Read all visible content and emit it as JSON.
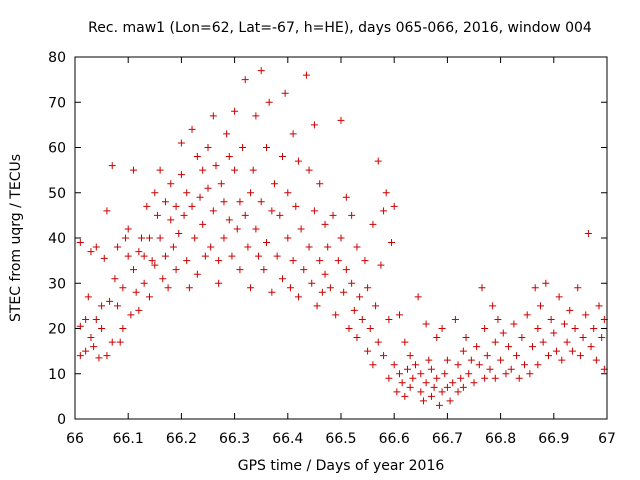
{
  "chart_data": {
    "type": "scatter",
    "title": "Rec. maw1 (Lon=62, Lat=-67, h=HE), days 065-066, 2016, window 004",
    "xlabel": "GPS time / Days of year 2016",
    "ylabel": "STEC from uqrg / TECUs",
    "xlim": [
      66,
      67
    ],
    "ylim": [
      0,
      80
    ],
    "xticks": [
      "66",
      "66.1",
      "66.2",
      "66.3",
      "66.4",
      "66.5",
      "66.6",
      "66.7",
      "66.8",
      "66.9",
      "67"
    ],
    "yticks": [
      "0",
      "10",
      "20",
      "30",
      "40",
      "50",
      "60",
      "70",
      "80"
    ],
    "grid": false,
    "marker": "plus",
    "color": "#cc0000",
    "series": [
      {
        "points": [
          [
            66.01,
            20.5
          ],
          [
            66.01,
            14.0
          ],
          [
            66.01,
            39.0
          ],
          [
            66.02,
            22.0
          ],
          [
            66.02,
            15.0
          ],
          [
            66.025,
            27.0
          ],
          [
            66.03,
            37.0
          ],
          [
            66.03,
            18.0
          ],
          [
            66.035,
            16.0
          ],
          [
            66.04,
            38.0
          ],
          [
            66.04,
            22.0
          ],
          [
            66.045,
            13.5
          ],
          [
            66.05,
            25.0
          ],
          [
            66.05,
            20.0
          ],
          [
            66.055,
            35.5
          ],
          [
            66.06,
            46.0
          ],
          [
            66.06,
            14.0
          ],
          [
            66.065,
            26.0
          ],
          [
            66.07,
            17.0
          ],
          [
            66.07,
            56.0
          ],
          [
            66.075,
            31.0
          ],
          [
            66.08,
            38.0
          ],
          [
            66.08,
            25.0
          ],
          [
            66.085,
            17.0
          ],
          [
            66.09,
            29.0
          ],
          [
            66.09,
            20.0
          ],
          [
            66.095,
            40.0
          ],
          [
            66.1,
            42.0
          ],
          [
            66.1,
            36.0
          ],
          [
            66.105,
            23.0
          ],
          [
            66.11,
            55.0
          ],
          [
            66.11,
            33.0
          ],
          [
            66.115,
            28.0
          ],
          [
            66.12,
            37.0
          ],
          [
            66.12,
            24.0
          ],
          [
            66.125,
            40.0
          ],
          [
            66.13,
            36.0
          ],
          [
            66.13,
            30.0
          ],
          [
            66.135,
            47.0
          ],
          [
            66.14,
            40.0
          ],
          [
            66.14,
            27.0
          ],
          [
            66.145,
            35.0
          ],
          [
            66.15,
            50.0
          ],
          [
            66.15,
            34.0
          ],
          [
            66.155,
            45.0
          ],
          [
            66.16,
            55.0
          ],
          [
            66.16,
            40.0
          ],
          [
            66.165,
            31.0
          ],
          [
            66.17,
            48.0
          ],
          [
            66.17,
            36.0
          ],
          [
            66.175,
            29.0
          ],
          [
            66.18,
            52.0
          ],
          [
            66.18,
            44.0
          ],
          [
            66.185,
            38.0
          ],
          [
            66.19,
            47.0
          ],
          [
            66.19,
            33.0
          ],
          [
            66.195,
            41.0
          ],
          [
            66.2,
            61.0
          ],
          [
            66.2,
            54.0
          ],
          [
            66.205,
            45.0
          ],
          [
            66.21,
            50.0
          ],
          [
            66.21,
            35.0
          ],
          [
            66.215,
            29.0
          ],
          [
            66.22,
            64.0
          ],
          [
            66.22,
            47.0
          ],
          [
            66.225,
            40.0
          ],
          [
            66.23,
            58.0
          ],
          [
            66.23,
            32.0
          ],
          [
            66.235,
            49.0
          ],
          [
            66.24,
            55.0
          ],
          [
            66.24,
            43.0
          ],
          [
            66.245,
            36.0
          ],
          [
            66.25,
            60.0
          ],
          [
            66.25,
            51.0
          ],
          [
            66.255,
            38.0
          ],
          [
            66.26,
            67.0
          ],
          [
            66.26,
            46.0
          ],
          [
            66.265,
            56.0
          ],
          [
            66.27,
            35.0
          ],
          [
            66.27,
            30.0
          ],
          [
            66.275,
            52.0
          ],
          [
            66.28,
            48.0
          ],
          [
            66.28,
            40.0
          ],
          [
            66.285,
            63.0
          ],
          [
            66.29,
            58.0
          ],
          [
            66.29,
            44.0
          ],
          [
            66.295,
            36.0
          ],
          [
            66.3,
            68.0
          ],
          [
            66.3,
            55.0
          ],
          [
            66.305,
            42.0
          ],
          [
            66.31,
            48.0
          ],
          [
            66.31,
            33.0
          ],
          [
            66.315,
            60.0
          ],
          [
            66.32,
            75.0
          ],
          [
            66.32,
            45.0
          ],
          [
            66.325,
            38.0
          ],
          [
            66.33,
            50.0
          ],
          [
            66.33,
            29.0
          ],
          [
            66.335,
            55.0
          ],
          [
            66.34,
            67.0
          ],
          [
            66.34,
            42.0
          ],
          [
            66.345,
            36.0
          ],
          [
            66.35,
            77.0
          ],
          [
            66.35,
            48.0
          ],
          [
            66.355,
            33.0
          ],
          [
            66.36,
            60.0
          ],
          [
            66.36,
            39.0
          ],
          [
            66.365,
            70.0
          ],
          [
            66.37,
            46.0
          ],
          [
            66.37,
            28.0
          ],
          [
            66.375,
            52.0
          ],
          [
            66.38,
            36.0
          ],
          [
            66.385,
            45.0
          ],
          [
            66.39,
            58.0
          ],
          [
            66.39,
            31.0
          ],
          [
            66.395,
            72.0
          ],
          [
            66.4,
            50.0
          ],
          [
            66.4,
            40.0
          ],
          [
            66.405,
            29.0
          ],
          [
            66.41,
            63.0
          ],
          [
            66.41,
            35.0
          ],
          [
            66.415,
            47.0
          ],
          [
            66.42,
            57.0
          ],
          [
            66.42,
            27.0
          ],
          [
            66.425,
            42.0
          ],
          [
            66.43,
            33.0
          ],
          [
            66.435,
            76.0
          ],
          [
            66.44,
            55.0
          ],
          [
            66.44,
            38.0
          ],
          [
            66.445,
            30.0
          ],
          [
            66.45,
            65.0
          ],
          [
            66.45,
            46.0
          ],
          [
            66.455,
            25.0
          ],
          [
            66.46,
            52.0
          ],
          [
            66.46,
            35.0
          ],
          [
            66.465,
            28.0
          ],
          [
            66.47,
            43.0
          ],
          [
            66.47,
            32.0
          ],
          [
            66.475,
            38.0
          ],
          [
            66.48,
            29.0
          ],
          [
            66.485,
            45.0
          ],
          [
            66.49,
            23.0
          ],
          [
            66.495,
            35.0
          ],
          [
            66.5,
            66.0
          ],
          [
            66.5,
            40.0
          ],
          [
            66.505,
            28.0
          ],
          [
            66.51,
            49.0
          ],
          [
            66.51,
            33.0
          ],
          [
            66.515,
            20.0
          ],
          [
            66.52,
            45.0
          ],
          [
            66.52,
            30.0
          ],
          [
            66.525,
            24.0
          ],
          [
            66.53,
            38.0
          ],
          [
            66.53,
            18.0
          ],
          [
            66.535,
            27.0
          ],
          [
            66.54,
            22.0
          ],
          [
            66.545,
            35.0
          ],
          [
            66.55,
            15.0
          ],
          [
            66.55,
            29.0
          ],
          [
            66.555,
            20.0
          ],
          [
            66.56,
            43.0
          ],
          [
            66.56,
            12.0
          ],
          [
            66.565,
            25.0
          ],
          [
            66.57,
            57.0
          ],
          [
            66.57,
            17.0
          ],
          [
            66.575,
            34.0
          ],
          [
            66.58,
            46.0
          ],
          [
            66.58,
            14.0
          ],
          [
            66.585,
            50.0
          ],
          [
            66.59,
            22.0
          ],
          [
            66.59,
            9.0
          ],
          [
            66.595,
            39.0
          ],
          [
            66.6,
            47.0
          ],
          [
            66.6,
            12.0
          ],
          [
            66.605,
            6.0
          ],
          [
            66.61,
            23.0
          ],
          [
            66.61,
            10.0
          ],
          [
            66.615,
            8.0
          ],
          [
            66.62,
            17.0
          ],
          [
            66.62,
            5.0
          ],
          [
            66.625,
            11.0
          ],
          [
            66.63,
            14.0
          ],
          [
            66.63,
            7.0
          ],
          [
            66.635,
            9.0
          ],
          [
            66.64,
            12.0
          ],
          [
            66.645,
            27.0
          ],
          [
            66.65,
            6.0
          ],
          [
            66.65,
            10.0
          ],
          [
            66.655,
            4.0
          ],
          [
            66.66,
            21.0
          ],
          [
            66.66,
            8.0
          ],
          [
            66.665,
            13.0
          ],
          [
            66.67,
            5.0
          ],
          [
            66.67,
            11.0
          ],
          [
            66.675,
            7.0
          ],
          [
            66.68,
            18.0
          ],
          [
            66.68,
            9.0
          ],
          [
            66.685,
            3.0
          ],
          [
            66.69,
            6.0
          ],
          [
            66.69,
            20.0
          ],
          [
            66.695,
            10.0
          ],
          [
            66.7,
            7.0
          ],
          [
            66.7,
            13.0
          ],
          [
            66.705,
            4.0
          ],
          [
            66.71,
            8.0
          ],
          [
            66.715,
            22.0
          ],
          [
            66.72,
            6.0
          ],
          [
            66.72,
            12.0
          ],
          [
            66.725,
            9.0
          ],
          [
            66.73,
            15.0
          ],
          [
            66.73,
            7.0
          ],
          [
            66.735,
            18.0
          ],
          [
            66.74,
            10.0
          ],
          [
            66.745,
            13.0
          ],
          [
            66.75,
            8.0
          ],
          [
            66.755,
            16.0
          ],
          [
            66.76,
            12.0
          ],
          [
            66.765,
            29.0
          ],
          [
            66.77,
            9.0
          ],
          [
            66.77,
            20.0
          ],
          [
            66.775,
            14.0
          ],
          [
            66.78,
            11.0
          ],
          [
            66.785,
            25.0
          ],
          [
            66.79,
            17.0
          ],
          [
            66.79,
            9.0
          ],
          [
            66.795,
            22.0
          ],
          [
            66.8,
            13.0
          ],
          [
            66.805,
            19.0
          ],
          [
            66.81,
            10.0
          ],
          [
            66.815,
            16.0
          ],
          [
            66.82,
            11.0
          ],
          [
            66.825,
            21.0
          ],
          [
            66.83,
            14.0
          ],
          [
            66.835,
            9.0
          ],
          [
            66.84,
            18.0
          ],
          [
            66.845,
            12.0
          ],
          [
            66.85,
            23.0
          ],
          [
            66.855,
            10.0
          ],
          [
            66.86,
            16.0
          ],
          [
            66.865,
            29.0
          ],
          [
            66.87,
            20.0
          ],
          [
            66.87,
            12.0
          ],
          [
            66.875,
            25.0
          ],
          [
            66.88,
            17.0
          ],
          [
            66.885,
            30.0
          ],
          [
            66.89,
            14.0
          ],
          [
            66.895,
            22.0
          ],
          [
            66.9,
            19.0
          ],
          [
            66.905,
            15.0
          ],
          [
            66.91,
            27.0
          ],
          [
            66.915,
            13.0
          ],
          [
            66.92,
            21.0
          ],
          [
            66.925,
            17.0
          ],
          [
            66.93,
            24.0
          ],
          [
            66.935,
            15.0
          ],
          [
            66.94,
            20.0
          ],
          [
            66.945,
            29.0
          ],
          [
            66.95,
            14.0
          ],
          [
            66.955,
            18.0
          ],
          [
            66.96,
            23.0
          ],
          [
            66.965,
            41.0
          ],
          [
            66.97,
            16.0
          ],
          [
            66.975,
            20.0
          ],
          [
            66.98,
            13.0
          ],
          [
            66.985,
            25.0
          ],
          [
            66.99,
            18.0
          ],
          [
            66.995,
            11.0
          ],
          [
            66.995,
            22.0
          ]
        ]
      }
    ]
  }
}
